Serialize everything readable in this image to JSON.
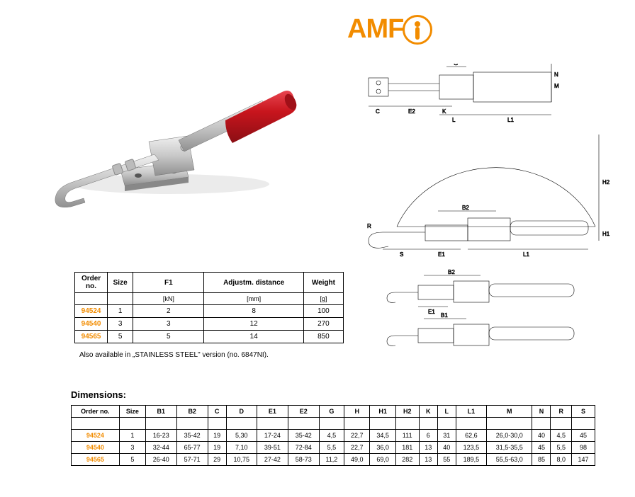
{
  "logo": {
    "text": "AMF"
  },
  "note": "Also available in „STAINLESS STEEL\" version (no. 6847NI).",
  "dimensions_heading": "Dimensions:",
  "table1": {
    "headers": [
      "Order no.",
      "Size",
      "F1",
      "Adjustm. distance",
      "Weight"
    ],
    "units": [
      "",
      "",
      "[kN]",
      "[mm]",
      "[g]"
    ],
    "rows": [
      {
        "order": "94524",
        "cells": [
          "1",
          "2",
          "8",
          "100"
        ]
      },
      {
        "order": "94540",
        "cells": [
          "3",
          "3",
          "12",
          "270"
        ]
      },
      {
        "order": "94565",
        "cells": [
          "5",
          "5",
          "14",
          "850"
        ]
      }
    ]
  },
  "table2": {
    "headers": [
      "Order no.",
      "Size",
      "B1",
      "B2",
      "C",
      "D",
      "E1",
      "E2",
      "G",
      "H",
      "H1",
      "H2",
      "K",
      "L",
      "L1",
      "M",
      "N",
      "R",
      "S"
    ],
    "rows": [
      {
        "order": "94524",
        "cells": [
          "1",
          "16-23",
          "35-42",
          "19",
          "5,30",
          "17-24",
          "35-42",
          "4,5",
          "22,7",
          "34,5",
          "111",
          "6",
          "31",
          "62,6",
          "26,0-30,0",
          "40",
          "4,5",
          "45"
        ]
      },
      {
        "order": "94540",
        "cells": [
          "3",
          "32-44",
          "65-77",
          "19",
          "7,10",
          "39-51",
          "72-84",
          "5,5",
          "22,7",
          "36,0",
          "181",
          "13",
          "40",
          "123,5",
          "31,5-35,5",
          "45",
          "5,5",
          "98"
        ]
      },
      {
        "order": "94565",
        "cells": [
          "5",
          "26-40",
          "57-71",
          "29",
          "10,75",
          "27-42",
          "58-73",
          "11,2",
          "49,0",
          "69,0",
          "282",
          "13",
          "55",
          "189,5",
          "55,5-63,0",
          "85",
          "8,0",
          "147"
        ]
      }
    ]
  },
  "diagram_labels": [
    "G",
    "N",
    "M",
    "C",
    "K",
    "E2",
    "L",
    "L1",
    "B2",
    "H2",
    "H1",
    "R",
    "S",
    "E1",
    "L1",
    "B2",
    "E1",
    "B1",
    "E1"
  ],
  "colors": {
    "brand": "#f28c00",
    "metal_light": "#d8d8d8",
    "metal_mid": "#b0b0b0",
    "metal_dark": "#808080",
    "red_handle": "#c8151d",
    "line": "#000000"
  }
}
